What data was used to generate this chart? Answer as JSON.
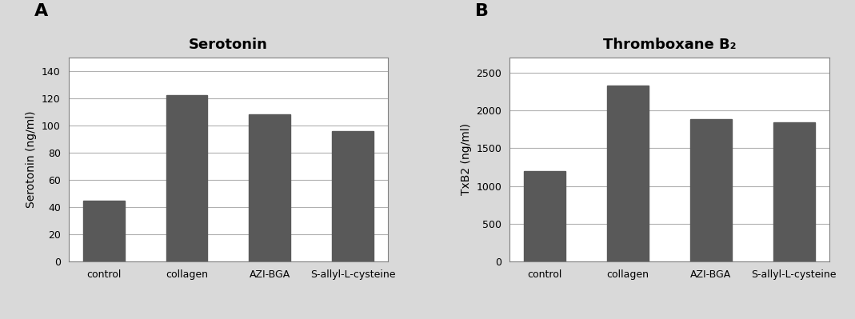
{
  "panel_A": {
    "title": "Serotonin",
    "categories": [
      "control",
      "collagen",
      "AZI-BGA",
      "S-allyl-L-cysteine"
    ],
    "values": [
      45,
      122,
      108,
      96
    ],
    "ylabel": "Serotonin (ng/ml)",
    "ylim": [
      0,
      150
    ],
    "yticks": [
      0,
      20,
      40,
      60,
      80,
      100,
      120,
      140
    ],
    "label": "A"
  },
  "panel_B": {
    "title": "Thromboxane B₂",
    "categories": [
      "control",
      "collagen",
      "AZI-BGA",
      "S-allyl-L-cysteine"
    ],
    "values": [
      1200,
      2330,
      1880,
      1840
    ],
    "ylabel": "TxB2 (ng/ml)",
    "ylim": [
      0,
      2700
    ],
    "yticks": [
      0,
      500,
      1000,
      1500,
      2000,
      2500
    ],
    "label": "B"
  },
  "bar_color": "#595959",
  "bar_width": 0.5,
  "title_fontsize": 13,
  "label_fontsize": 10,
  "tick_fontsize": 9,
  "panel_label_fontsize": 16,
  "figure_bg": "#d9d9d9",
  "panel_bg": "#ffffff",
  "grid_color": "#b0b0b0",
  "spine_color": "#808080"
}
